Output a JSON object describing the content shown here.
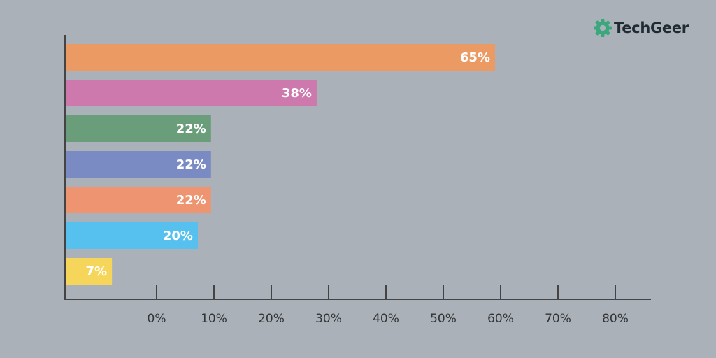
{
  "brand": {
    "name_part1": "Tech",
    "name_part2": "Geer",
    "accent": "#3aa77d"
  },
  "chart_data": {
    "type": "bar",
    "orientation": "horizontal",
    "categories": [
      "",
      "",
      "",
      "",
      "",
      "",
      ""
    ],
    "values": [
      65,
      38,
      22,
      22,
      22,
      20,
      7
    ],
    "value_labels": [
      "65%",
      "38%",
      "22%",
      "22%",
      "22%",
      "20%",
      "7%"
    ],
    "colors": [
      "#ea9a62",
      "#cd79ad",
      "#6a9e7b",
      "#7a8bc4",
      "#ee9470",
      "#56c0ee",
      "#f6d65a"
    ],
    "xticks": [
      "0%",
      "10%",
      "20%",
      "30%",
      "40%",
      "50%",
      "60%",
      "70%",
      "80%"
    ],
    "title": "",
    "xlabel": "",
    "ylabel": "",
    "grid": false,
    "legend": "none",
    "axis_color": "#444444"
  }
}
